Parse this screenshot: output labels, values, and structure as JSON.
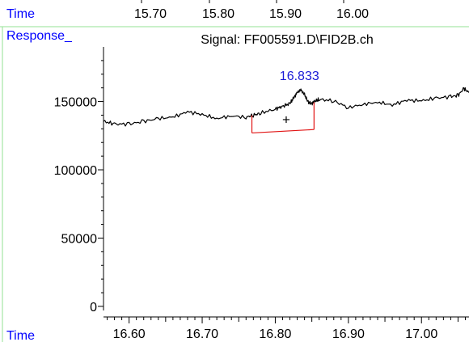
{
  "colors": {
    "label_blue": "#0000ff",
    "peak_label_blue": "#1a1ad6",
    "divider_green": "#93e293",
    "baseline_red": "#e11414",
    "trace": "#000000"
  },
  "top_axis": {
    "label": "Time",
    "ticks": [
      "15.70",
      "15.80",
      "15.90",
      "16.00"
    ]
  },
  "labels": {
    "response": "Response_",
    "bottom_time": "Time"
  },
  "chart_data": {
    "type": "line",
    "title": "Signal: FF005591.D\\FID2B.ch",
    "xlabel": "Time",
    "ylabel": "Response_",
    "xlim": [
      16.565,
      17.065
    ],
    "ylim": [
      -3000,
      190000
    ],
    "x_ticks": [
      16.6,
      16.7,
      16.8,
      16.9,
      17.0
    ],
    "x_tick_labels": [
      "16.60",
      "16.70",
      "16.80",
      "16.90",
      "17.00"
    ],
    "x_minor_step": 0.01,
    "y_ticks": [
      0,
      50000,
      100000,
      150000
    ],
    "y_tick_labels": [
      "0",
      "50000",
      "100000",
      "150000"
    ],
    "y_minor_step": 10000,
    "grid": false,
    "series": [
      {
        "x": [
          16.565,
          16.58,
          16.6,
          16.62,
          16.64,
          16.66,
          16.68,
          16.7,
          16.72,
          16.74,
          16.76,
          16.77,
          16.78,
          16.8,
          16.81,
          16.82,
          16.825,
          16.83,
          16.835,
          16.84,
          16.845,
          16.85,
          16.855,
          16.86,
          16.88,
          16.9,
          16.92,
          16.94,
          16.96,
          16.98,
          17.0,
          17.02,
          17.04,
          17.05,
          17.058,
          17.065
        ],
        "y": [
          135500,
          133500,
          133500,
          135500,
          137500,
          138500,
          142500,
          140500,
          137500,
          139500,
          138500,
          140000,
          141500,
          144500,
          146500,
          148500,
          152500,
          156500,
          158500,
          155000,
          149500,
          148500,
          150500,
          151500,
          150500,
          145500,
          148000,
          149500,
          147500,
          151000,
          150500,
          152500,
          153500,
          154500,
          159500,
          156500
        ]
      }
    ],
    "peak": {
      "label": "16.833",
      "time": 16.833,
      "value": 158500
    },
    "baseline": {
      "x_start": 16.768,
      "x_end": 16.853,
      "y_start": 127000,
      "y_end": 129500,
      "start_signal": 140000,
      "end_signal": 149500
    },
    "marker": {
      "symbol": "+",
      "x": 16.815,
      "y": 137000
    }
  }
}
